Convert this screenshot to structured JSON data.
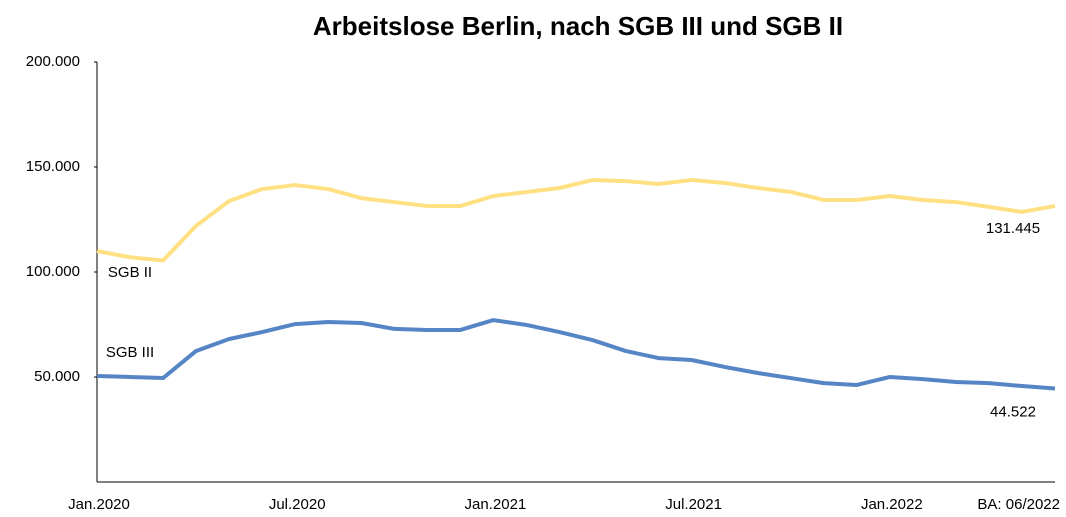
{
  "chart_data": {
    "type": "line",
    "title": "Arbeitslose Berlin, nach SGB III und SGB II",
    "annotation": "BA: 06/2022",
    "categories": [
      "Jan.2020",
      null,
      null,
      null,
      null,
      null,
      "Jul.2020",
      null,
      null,
      null,
      null,
      null,
      "Jan.2021",
      null,
      null,
      null,
      null,
      null,
      "Jul.2021",
      null,
      null,
      null,
      null,
      null,
      "Jan.2022",
      null,
      null,
      null,
      null,
      null
    ],
    "series": [
      {
        "name": "SGB II",
        "color": "#ffe083",
        "values": [
          110000,
          107000,
          105500,
          122000,
          133800,
          139500,
          141400,
          139500,
          135200,
          133300,
          131400,
          131400,
          136200,
          138100,
          140000,
          143800,
          143300,
          141900,
          143800,
          142400,
          140000,
          138100,
          134300,
          134300,
          136200,
          134300,
          133300,
          131000,
          128600,
          131445
        ],
        "value_labels": [
          null,
          null,
          null,
          null,
          null,
          null,
          null,
          null,
          null,
          null,
          null,
          null,
          null,
          null,
          null,
          null,
          null,
          null,
          null,
          null,
          null,
          null,
          null,
          null,
          null,
          null,
          null,
          null,
          null,
          "131.445"
        ]
      },
      {
        "name": "SGB III",
        "color": "#5585c5",
        "values": [
          50500,
          50000,
          49500,
          62400,
          68100,
          71400,
          75200,
          76200,
          75700,
          72900,
          72400,
          72400,
          77100,
          74800,
          71400,
          67600,
          62400,
          59000,
          58100,
          54800,
          51900,
          49500,
          47100,
          46200,
          50000,
          49000,
          47600,
          47100,
          45700,
          44522
        ],
        "value_labels": [
          null,
          null,
          null,
          null,
          null,
          null,
          null,
          null,
          null,
          null,
          null,
          null,
          null,
          null,
          null,
          null,
          null,
          null,
          null,
          null,
          null,
          null,
          null,
          null,
          null,
          null,
          null,
          null,
          null,
          "44.522"
        ]
      }
    ],
    "ylim": [
      0,
      200000
    ],
    "yticks": [
      {
        "value": 50000,
        "label": "50.000"
      },
      {
        "value": 100000,
        "label": "100.000"
      },
      {
        "value": 150000,
        "label": "150.000"
      },
      {
        "value": 200000,
        "label": "200.000"
      }
    ],
    "grid": false
  }
}
